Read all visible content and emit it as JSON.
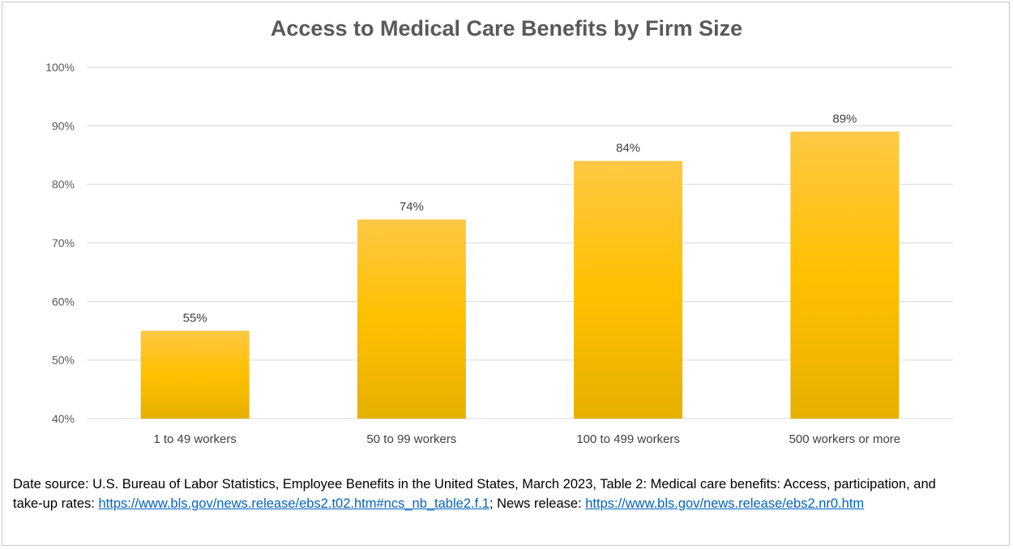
{
  "chart_data": {
    "type": "bar",
    "title": "Access to Medical Care Benefits by Firm Size",
    "categories": [
      "1 to 49 workers",
      "50 to 99 workers",
      "100 to 499 workers",
      "500 workers or more"
    ],
    "values": [
      55,
      74,
      84,
      89
    ],
    "data_labels": [
      "55%",
      "74%",
      "84%",
      "89%"
    ],
    "ylim": [
      40,
      100
    ],
    "yticks": [
      40,
      50,
      60,
      70,
      80,
      90,
      100
    ],
    "ytick_labels": [
      "40%",
      "50%",
      "60%",
      "70%",
      "80%",
      "90%",
      "100%"
    ],
    "xlabel": "",
    "ylabel": "",
    "grid": true,
    "legend": "none",
    "bar_color_top": "#ffc844",
    "bar_color_mid": "#ffc000",
    "bar_color_bottom": "#e6b000",
    "grid_color": "#d9d9d9"
  },
  "source": {
    "text1": "Date source: U.S. Bureau of Labor Statistics, Employee Benefits in the United States, March 2023, Table 2: Medical care benefits: Access, participation, and take-up rates: ",
    "link1": "https://www.bls.gov/news.release/ebs2.t02.htm#ncs_nb_table2.f.1",
    "text2": "; News release: ",
    "link2": "https://www.bls.gov/news.release/ebs2.nr0.htm"
  }
}
